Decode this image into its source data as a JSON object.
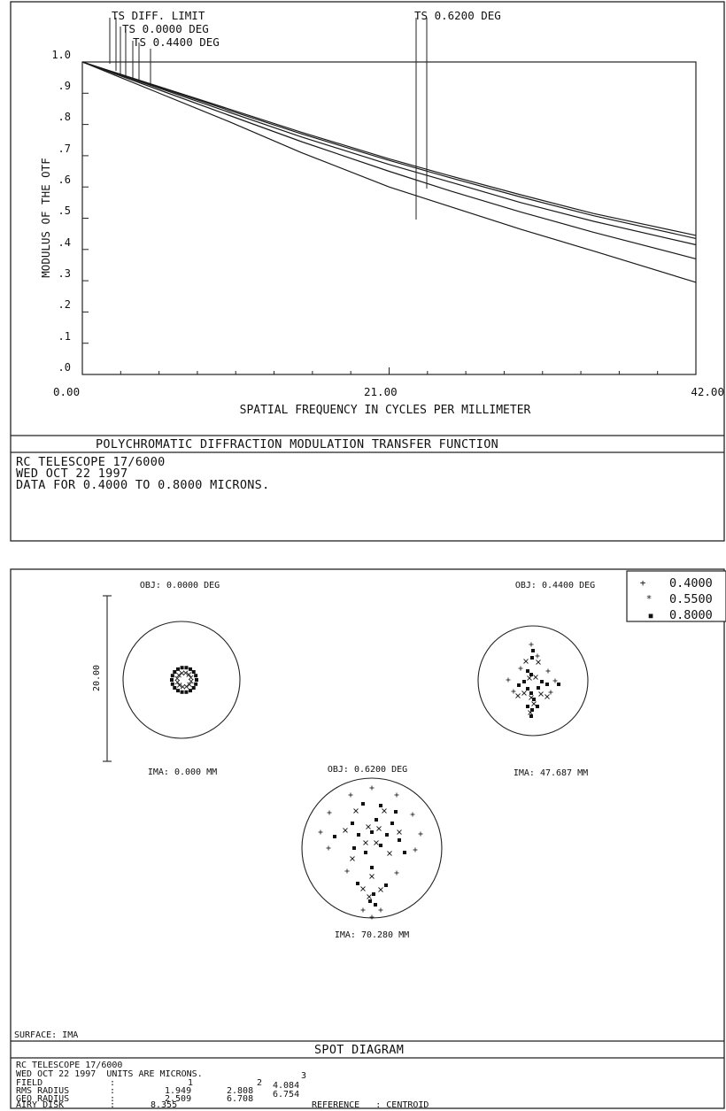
{
  "mtf": {
    "header_labels": {
      "diff_limit": "TS DIFF. LIMIT",
      "f0": "TS 0.0000 DEG",
      "f1": "TS 0.4400 DEG",
      "f2": "TS 0.6200 DEG"
    },
    "title": "POLYCHROMATIC DIFFRACTION MODULATION TRANSFER FUNCTION",
    "info_lines": [
      "RC TELESCOPE 17/6000",
      "WED OCT 22 1997",
      "DATA FOR 0.4000 TO 0.8000 MICRONS."
    ]
  },
  "chart_data": [
    {
      "type": "line",
      "xlabel": "SPATIAL FREQUENCY IN CYCLES PER MILLIMETER",
      "ylabel": "MODULUS OF THE OTF",
      "xlim": [
        0,
        42
      ],
      "ylim": [
        0,
        1
      ],
      "x_tick_labels": [
        "0.00",
        "21.00",
        "42.00"
      ],
      "y_tick_labels": [
        "1.0",
        ".9",
        ".8",
        ".7",
        ".6",
        ".5",
        ".4",
        ".3",
        ".2",
        ".1",
        ".0"
      ],
      "grid": false,
      "x": [
        0,
        5,
        10,
        15,
        21,
        25,
        30,
        35,
        42
      ],
      "series": [
        {
          "values": [
            1.0,
            0.925,
            0.85,
            0.775,
            0.69,
            0.638,
            0.575,
            0.515,
            0.445
          ]
        },
        {
          "values": [
            1.0,
            0.923,
            0.846,
            0.77,
            0.685,
            0.632,
            0.568,
            0.508,
            0.435
          ]
        },
        {
          "values": [
            1.0,
            0.92,
            0.84,
            0.76,
            0.672,
            0.618,
            0.55,
            0.49,
            0.415
          ]
        },
        {
          "values": [
            1.0,
            0.915,
            0.83,
            0.745,
            0.65,
            0.59,
            0.52,
            0.455,
            0.37
          ]
        },
        {
          "values": [
            1.0,
            0.905,
            0.81,
            0.71,
            0.6,
            0.54,
            0.465,
            0.395,
            0.295
          ]
        }
      ]
    }
  ],
  "spot": {
    "fields": [
      {
        "obj": "OBJ: 0.0000 DEG",
        "ima": "IMA: 0.000 MM"
      },
      {
        "obj": "OBJ: 0.4400 DEG",
        "ima": "IMA: 47.687 MM"
      },
      {
        "obj": "OBJ: 0.6200 DEG",
        "ima": "IMA: 70.280 MM"
      }
    ],
    "scale_label": "20.00",
    "legend": [
      {
        "sym": "+",
        "val": "0.4000"
      },
      {
        "sym": "*",
        "val": "0.5500"
      },
      {
        "sym": "■",
        "val": "0.8000"
      }
    ],
    "surface": "SURFACE: IMA",
    "title": "SPOT DIAGRAM",
    "info": {
      "line1": "RC TELESCOPE 17/6000",
      "line2": "WED OCT 22 1997  UNITS ARE MICRONS.",
      "rows": [
        {
          "label": "FIELD",
          "sep": ":",
          "v": [
            "1",
            "2",
            "3"
          ]
        },
        {
          "label": "RMS RADIUS",
          "sep": ":",
          "v": [
            "1.949",
            "2.808",
            "4.084"
          ]
        },
        {
          "label": "GEO RADIUS",
          "sep": ":",
          "v": [
            "2.509",
            "6.708",
            "6.754"
          ]
        }
      ],
      "airy_label": "AIRY DISK",
      "airy_sep": ":",
      "airy_value": "8.355",
      "reference": "REFERENCE   : CENTROID"
    }
  }
}
